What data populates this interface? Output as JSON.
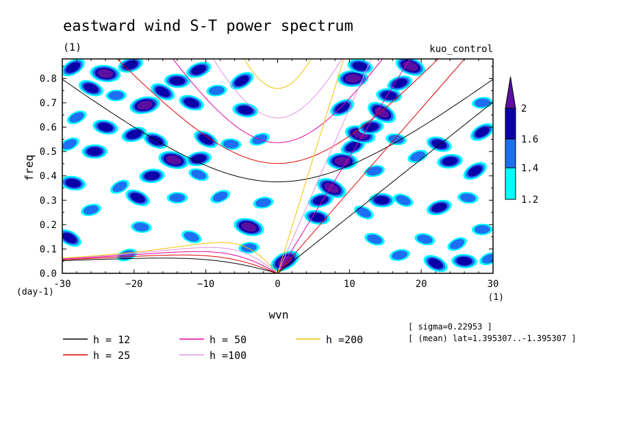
{
  "chart_data": {
    "type": "heatmap",
    "title": "eastward wind S-T power spectrum",
    "subtitle_left": "(1)",
    "subtitle_right": "kuo_control",
    "xlabel": "wvn",
    "ylabel": "freq",
    "x_unit_label": "(1)",
    "y_unit_label": "(day-1)",
    "xlim": [
      -30,
      30
    ],
    "ylim": [
      0,
      0.88
    ],
    "xticks": [
      -30,
      -20,
      -10,
      0,
      10,
      20,
      30
    ],
    "xtick_labels": [
      "-30",
      "−20",
      "−10",
      "0",
      "10",
      "20",
      "30"
    ],
    "yticks": [
      0.0,
      0.1,
      0.2,
      0.3,
      0.4,
      0.5,
      0.6,
      0.7,
      0.8
    ],
    "ytick_labels": [
      "0.0",
      "0.1",
      "0.2",
      "0.3",
      "0.4",
      "0.5",
      "0.6",
      "0.7",
      "0.8"
    ],
    "colorbar": {
      "levels": [
        1.2,
        1.4,
        1.6,
        2
      ],
      "labels": [
        "1.2",
        "1.4",
        "1.6",
        "2"
      ],
      "colors": [
        "#00ffff",
        "#1e6ff0",
        "#0a00a8",
        "#5a0fa0"
      ]
    },
    "contour_blobs": [
      {
        "x": -28.5,
        "y": 0.845,
        "level": 2
      },
      {
        "x": -24.0,
        "y": 0.82,
        "level": 3
      },
      {
        "x": -20.5,
        "y": 0.855,
        "level": 2
      },
      {
        "x": -26.0,
        "y": 0.76,
        "level": 2
      },
      {
        "x": -22.5,
        "y": 0.73,
        "level": 1
      },
      {
        "x": -28.0,
        "y": 0.64,
        "level": 1
      },
      {
        "x": -24.0,
        "y": 0.6,
        "level": 2
      },
      {
        "x": -18.5,
        "y": 0.69,
        "level": 3
      },
      {
        "x": -16.0,
        "y": 0.745,
        "level": 2
      },
      {
        "x": -14.0,
        "y": 0.79,
        "level": 2
      },
      {
        "x": -11.0,
        "y": 0.835,
        "level": 2
      },
      {
        "x": -12.0,
        "y": 0.7,
        "level": 2
      },
      {
        "x": -8.5,
        "y": 0.75,
        "level": 1
      },
      {
        "x": -5.0,
        "y": 0.79,
        "level": 2
      },
      {
        "x": -4.5,
        "y": 0.67,
        "level": 2
      },
      {
        "x": -20.0,
        "y": 0.57,
        "level": 2
      },
      {
        "x": -17.0,
        "y": 0.545,
        "level": 2
      },
      {
        "x": -25.5,
        "y": 0.5,
        "level": 2
      },
      {
        "x": -29.0,
        "y": 0.53,
        "level": 1
      },
      {
        "x": -14.5,
        "y": 0.465,
        "level": 3
      },
      {
        "x": -11.0,
        "y": 0.47,
        "level": 2
      },
      {
        "x": -10.0,
        "y": 0.55,
        "level": 2
      },
      {
        "x": -6.5,
        "y": 0.53,
        "level": 1
      },
      {
        "x": -2.5,
        "y": 0.55,
        "level": 1
      },
      {
        "x": -11.0,
        "y": 0.405,
        "level": 1
      },
      {
        "x": -17.5,
        "y": 0.4,
        "level": 2
      },
      {
        "x": -22.0,
        "y": 0.355,
        "level": 1
      },
      {
        "x": -28.5,
        "y": 0.37,
        "level": 2
      },
      {
        "x": -26.0,
        "y": 0.26,
        "level": 1
      },
      {
        "x": -19.5,
        "y": 0.31,
        "level": 2
      },
      {
        "x": -14.0,
        "y": 0.31,
        "level": 1
      },
      {
        "x": -8.0,
        "y": 0.315,
        "level": 1
      },
      {
        "x": -4.0,
        "y": 0.19,
        "level": 3
      },
      {
        "x": -2.0,
        "y": 0.29,
        "level": 1
      },
      {
        "x": -29.0,
        "y": 0.145,
        "level": 2
      },
      {
        "x": -19.0,
        "y": 0.19,
        "level": 1
      },
      {
        "x": -21.0,
        "y": 0.075,
        "level": 1
      },
      {
        "x": -12.0,
        "y": 0.15,
        "level": 1
      },
      {
        "x": -4.0,
        "y": 0.105,
        "level": 1
      },
      {
        "x": 1.0,
        "y": 0.05,
        "level": 3
      },
      {
        "x": 5.5,
        "y": 0.23,
        "level": 2
      },
      {
        "x": 6.0,
        "y": 0.3,
        "level": 2
      },
      {
        "x": 7.5,
        "y": 0.35,
        "level": 3
      },
      {
        "x": 9.0,
        "y": 0.46,
        "level": 3
      },
      {
        "x": 10.5,
        "y": 0.52,
        "level": 2
      },
      {
        "x": 11.5,
        "y": 0.57,
        "level": 3
      },
      {
        "x": 13.0,
        "y": 0.6,
        "level": 2
      },
      {
        "x": 14.5,
        "y": 0.66,
        "level": 3
      },
      {
        "x": 15.5,
        "y": 0.73,
        "level": 2
      },
      {
        "x": 17.0,
        "y": 0.78,
        "level": 2
      },
      {
        "x": 18.5,
        "y": 0.85,
        "level": 3
      },
      {
        "x": 10.5,
        "y": 0.8,
        "level": 3
      },
      {
        "x": 9.0,
        "y": 0.68,
        "level": 2
      },
      {
        "x": 11.5,
        "y": 0.85,
        "level": 2
      },
      {
        "x": 13.5,
        "y": 0.42,
        "level": 1
      },
      {
        "x": 12.0,
        "y": 0.25,
        "level": 1
      },
      {
        "x": 14.5,
        "y": 0.3,
        "level": 2
      },
      {
        "x": 19.5,
        "y": 0.48,
        "level": 1
      },
      {
        "x": 22.5,
        "y": 0.53,
        "level": 2
      },
      {
        "x": 24.0,
        "y": 0.46,
        "level": 2
      },
      {
        "x": 27.5,
        "y": 0.42,
        "level": 2
      },
      {
        "x": 26.5,
        "y": 0.31,
        "level": 1
      },
      {
        "x": 22.5,
        "y": 0.27,
        "level": 2
      },
      {
        "x": 17.5,
        "y": 0.3,
        "level": 1
      },
      {
        "x": 28.5,
        "y": 0.18,
        "level": 1
      },
      {
        "x": 25.0,
        "y": 0.12,
        "level": 1
      },
      {
        "x": 20.5,
        "y": 0.14,
        "level": 1
      },
      {
        "x": 17.0,
        "y": 0.075,
        "level": 1
      },
      {
        "x": 22.0,
        "y": 0.04,
        "level": 2
      },
      {
        "x": 26.0,
        "y": 0.05,
        "level": 2
      },
      {
        "x": 29.5,
        "y": 0.06,
        "level": 1
      },
      {
        "x": 13.5,
        "y": 0.14,
        "level": 1
      },
      {
        "x": 28.5,
        "y": 0.7,
        "level": 1
      },
      {
        "x": 28.5,
        "y": 0.58,
        "level": 2
      },
      {
        "x": 16.5,
        "y": 0.55,
        "level": 1
      }
    ],
    "dispersion_curves": [
      {
        "name": "h = 12",
        "h": 12,
        "color": "#000000"
      },
      {
        "name": "h = 25",
        "h": 25,
        "color": "#e00000"
      },
      {
        "name": "h = 50",
        "h": 50,
        "color": "#e000a0"
      },
      {
        "name": "h =100",
        "h": 100,
        "color": "#e090e0"
      },
      {
        "name": "h =200",
        "h": 200,
        "color": "#f0c000"
      }
    ],
    "legend": [
      {
        "label": "h = 12",
        "color": "#000000"
      },
      {
        "label": "h = 25",
        "color": "#e00000"
      },
      {
        "label": "h = 50",
        "color": "#e000a0"
      },
      {
        "label": "h =100",
        "color": "#e090e0"
      },
      {
        "label": "h =200",
        "color": "#f0c000"
      }
    ],
    "annotations": {
      "sigma": "[ sigma=0.22953 ]",
      "mean": "[ (mean) lat=1.395307..-1.395307 ]"
    }
  }
}
